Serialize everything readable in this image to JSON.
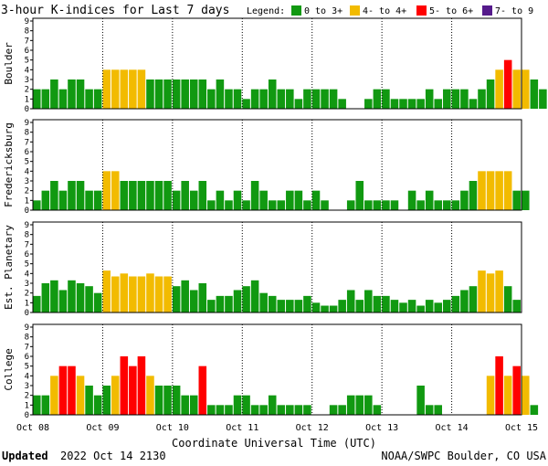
{
  "header": {
    "title": "3-hour K-indices for Last 7 days",
    "legend_label": "Legend:"
  },
  "legend": [
    {
      "label": "0 to 3+",
      "color": "#119911"
    },
    {
      "label": "4- to 4+",
      "color": "#f2bb00"
    },
    {
      "label": "5- to 6+",
      "color": "#ff0000"
    },
    {
      "label": "7- to 9",
      "color": "#551a8b"
    }
  ],
  "footer": {
    "updated_label": "Updated",
    "updated_value": "2022 Oct 14 2130",
    "source": "NOAA/SWPC Boulder, CO USA"
  },
  "chart_data": {
    "type": "bar",
    "xlabel": "Coordinate Universal Time (UTC)",
    "x_tick_labels": [
      "Oct 08",
      "Oct 09",
      "Oct 10",
      "Oct 11",
      "Oct 12",
      "Oct 13",
      "Oct 14",
      "Oct 15"
    ],
    "ylim": [
      0,
      9
    ],
    "y_tick_labels": [
      "0",
      "1",
      "2",
      "3",
      "4",
      "5",
      "6",
      "7",
      "8",
      "9"
    ],
    "bins_per_day": 8,
    "panels": [
      {
        "name": "Boulder",
        "values": [
          2,
          2,
          3,
          2,
          3,
          3,
          2,
          2,
          4,
          4,
          4,
          4,
          4,
          3,
          3,
          3,
          3,
          3,
          3,
          3,
          2,
          3,
          2,
          2,
          1,
          2,
          2,
          3,
          2,
          2,
          1,
          2,
          2,
          2,
          2,
          1,
          0,
          0,
          1,
          2,
          2,
          1,
          1,
          1,
          1,
          2,
          1,
          2,
          2,
          2,
          1,
          2,
          3,
          4,
          5,
          4,
          4,
          3,
          2,
          0
        ]
      },
      {
        "name": "Fredericksburg",
        "values": [
          1,
          2,
          3,
          2,
          3,
          3,
          2,
          2,
          4,
          4,
          3,
          3,
          3,
          3,
          3,
          3,
          2,
          3,
          2,
          3,
          1,
          2,
          1,
          2,
          1,
          3,
          2,
          1,
          1,
          2,
          2,
          1,
          2,
          1,
          0,
          0,
          1,
          3,
          1,
          1,
          1,
          1,
          0,
          2,
          1,
          2,
          1,
          1,
          1,
          2,
          3,
          4,
          4,
          4,
          4,
          2,
          2,
          0
        ]
      },
      {
        "name": "Est. Planetary",
        "values": [
          1.7,
          3,
          3.3,
          2.3,
          3.3,
          3,
          2.7,
          2,
          4.3,
          3.7,
          4,
          3.7,
          3.7,
          4,
          3.7,
          3.7,
          2.7,
          3.3,
          2.3,
          3,
          1.3,
          1.7,
          1.7,
          2.3,
          2.7,
          3.3,
          2,
          1.7,
          1.3,
          1.3,
          1.3,
          1.7,
          1,
          0.7,
          0.7,
          1.3,
          2.3,
          1.3,
          2.3,
          1.7,
          1.7,
          1.3,
          1,
          1.3,
          0.7,
          1.3,
          1,
          1.3,
          1.7,
          2.3,
          2.7,
          4.3,
          4,
          4.3,
          2.7,
          1.3
        ]
      },
      {
        "name": "College",
        "values": [
          2,
          2,
          4,
          5,
          5,
          4,
          3,
          2,
          3,
          4,
          6,
          5,
          6,
          4,
          3,
          3,
          3,
          2,
          2,
          5,
          1,
          1,
          1,
          2,
          2,
          1,
          1,
          2,
          1,
          1,
          1,
          1,
          0,
          0,
          1,
          1,
          2,
          2,
          2,
          1,
          0,
          0,
          0,
          0,
          3,
          1,
          1,
          0,
          0,
          0,
          0,
          0,
          4,
          6,
          4,
          5,
          4,
          1,
          0
        ]
      }
    ]
  }
}
